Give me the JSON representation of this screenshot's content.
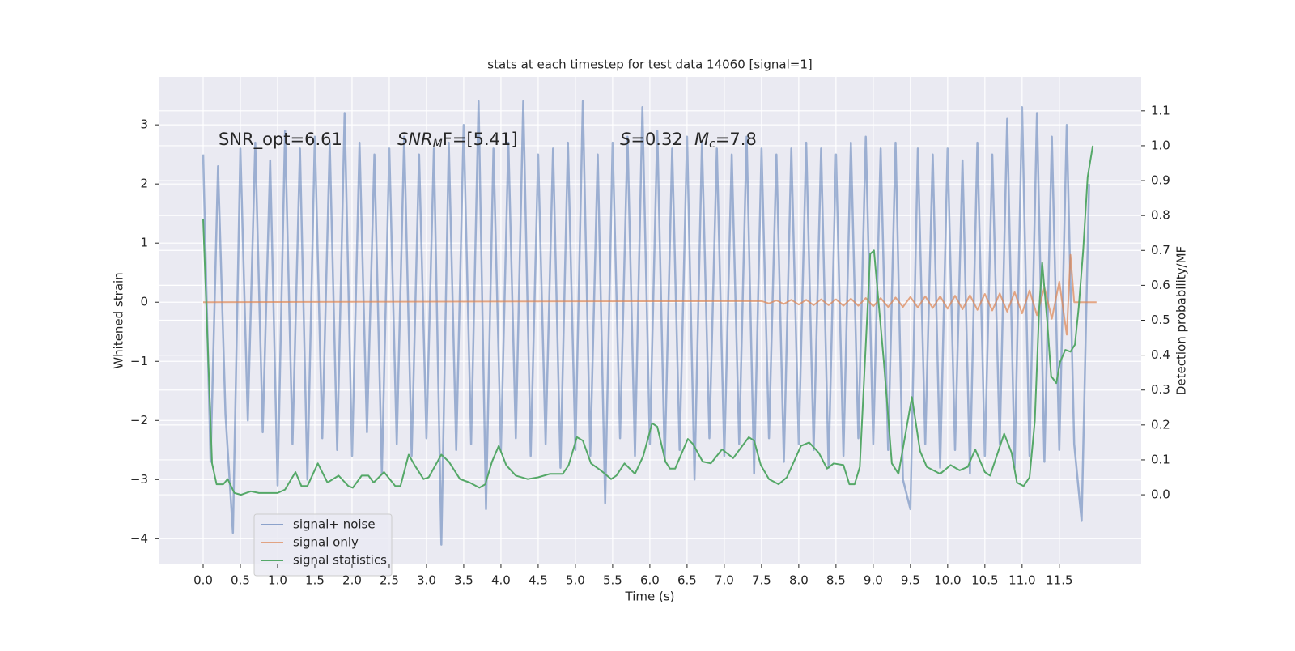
{
  "chart_data": {
    "type": "line",
    "title": "stats at each timestep for test data 14060 [signal=1]",
    "x_label": "Time (s)",
    "y_label": "Whitened strain",
    "y2_label": "Detection probability/MF",
    "annotations": [
      [
        "SNR_opt=6.61"
      ],
      [
        "SNR",
        "M",
        "F=[5.41]"
      ],
      [
        "S",
        "=0.32"
      ],
      [
        "M",
        "c",
        "=7.8"
      ]
    ],
    "xlim": [
      -0.587,
      12.6
    ],
    "ylim": [
      -4.42,
      3.81
    ],
    "y2lim": [
      -0.197,
      1.197
    ],
    "xticks": [
      {
        "value": 0,
        "label": "0.0"
      },
      0.5,
      {
        "value": 1,
        "label": "1.0"
      },
      1.5,
      {
        "value": 2,
        "label": "2.0"
      },
      2.5,
      {
        "value": 3,
        "label": "3.0"
      },
      3.5,
      {
        "value": 4,
        "label": "4.0"
      },
      4.5,
      {
        "value": 5,
        "label": "5.0"
      },
      5.5,
      {
        "value": 6,
        "label": "6.0"
      },
      6.5,
      {
        "value": 7,
        "label": "7.0"
      },
      7.5,
      {
        "value": 8,
        "label": "8.0"
      },
      8.5,
      {
        "value": 9,
        "label": "9.0"
      },
      9.5,
      {
        "value": 10,
        "label": "10.0"
      },
      10.5,
      {
        "value": 11,
        "label": "11.0"
      },
      11.5
    ],
    "yticks": [
      {
        "value": -4,
        "label": "−4"
      },
      {
        "value": -3,
        "label": "−3"
      },
      {
        "value": -2,
        "label": "−2"
      },
      {
        "value": -1,
        "label": "−1"
      },
      0,
      1,
      2,
      3
    ],
    "y2ticks": [
      {
        "value": 0,
        "label": "0.0"
      },
      0.1,
      0.2,
      0.3,
      0.4,
      0.5,
      0.6,
      0.7,
      0.8,
      0.9,
      {
        "value": 1,
        "label": "1.0"
      },
      1.1
    ],
    "grid": true,
    "legend": "lower left",
    "series": [
      {
        "name": "signal+ noise",
        "color": "#4c72b0",
        "x": [
          0.0,
          0.1,
          0.2,
          0.3,
          0.4,
          0.5,
          0.6,
          0.7,
          0.8,
          0.9,
          1.0,
          1.1,
          1.2,
          1.3,
          1.4,
          1.5,
          1.6,
          1.7,
          1.8,
          1.9,
          2.0,
          2.1,
          2.2,
          2.3,
          2.4,
          2.5,
          2.6,
          2.7,
          2.8,
          2.9,
          3.0,
          3.1,
          3.2,
          3.3,
          3.4,
          3.5,
          3.6,
          3.7,
          3.8,
          3.9,
          4.0,
          4.1,
          4.2,
          4.3,
          4.4,
          4.5,
          4.6,
          4.7,
          4.8,
          4.9,
          5.0,
          5.1,
          5.2,
          5.3,
          5.4,
          5.5,
          5.6,
          5.7,
          5.8,
          5.9,
          6.0,
          6.1,
          6.2,
          6.3,
          6.4,
          6.5,
          6.6,
          6.7,
          6.8,
          6.9,
          7.0,
          7.1,
          7.2,
          7.3,
          7.4,
          7.5,
          7.6,
          7.7,
          7.8,
          7.9,
          8.0,
          8.1,
          8.2,
          8.3,
          8.4,
          8.5,
          8.6,
          8.7,
          8.8,
          8.9,
          9.0,
          9.1,
          9.2,
          9.3,
          9.4,
          9.5,
          9.6,
          9.7,
          9.8,
          9.9,
          10.0,
          10.1,
          10.2,
          10.3,
          10.4,
          10.5,
          10.6,
          10.7,
          10.8,
          10.9,
          11.0,
          11.1,
          11.2,
          11.3,
          11.4,
          11.5,
          11.6,
          11.7,
          11.8,
          11.9
        ],
        "values": [
          2.5,
          -2.7,
          2.3,
          -1.9,
          -3.9,
          2.6,
          -2.0,
          2.7,
          -2.2,
          2.4,
          -3.1,
          2.9,
          -2.4,
          2.6,
          -3.0,
          2.8,
          -2.3,
          2.7,
          -2.5,
          3.2,
          -2.6,
          2.7,
          -2.2,
          2.5,
          -2.9,
          2.6,
          -2.4,
          2.8,
          -2.6,
          2.5,
          -2.3,
          2.6,
          -4.1,
          2.7,
          -2.5,
          3.0,
          -2.4,
          3.4,
          -3.5,
          2.6,
          -2.5,
          2.7,
          -2.3,
          3.4,
          -2.6,
          2.5,
          -2.4,
          2.6,
          -2.8,
          2.7,
          -2.5,
          3.4,
          -2.6,
          2.5,
          -3.4,
          2.7,
          -2.3,
          2.8,
          -2.6,
          3.3,
          -2.4,
          2.9,
          -2.7,
          2.6,
          -2.5,
          2.8,
          -3.0,
          2.7,
          -2.3,
          2.6,
          -2.6,
          2.5,
          -2.4,
          2.8,
          -2.9,
          2.6,
          -2.3,
          2.5,
          -2.7,
          2.6,
          -2.4,
          2.7,
          -2.5,
          2.6,
          -2.8,
          2.5,
          -2.6,
          2.7,
          -2.3,
          2.8,
          -2.4,
          2.6,
          -2.5,
          2.7,
          -3.0,
          -3.5,
          2.6,
          -2.4,
          2.5,
          -2.8,
          2.6,
          -2.5,
          2.4,
          -2.9,
          2.7,
          -2.6,
          2.5,
          -2.4,
          3.1,
          -2.8,
          3.3,
          -2.6,
          3.2,
          -2.7,
          2.8,
          -2.5,
          3.0,
          -2.4,
          -3.7,
          2.0
        ]
      },
      {
        "name": "signal only",
        "color": "#dd8452",
        "x": [
          0.0,
          7.5,
          7.6,
          7.7,
          7.8,
          7.9,
          8.0,
          8.1,
          8.2,
          8.3,
          8.4,
          8.5,
          8.6,
          8.7,
          8.8,
          8.9,
          9.0,
          9.1,
          9.2,
          9.3,
          9.4,
          9.5,
          9.6,
          9.7,
          9.8,
          9.9,
          10.0,
          10.1,
          10.2,
          10.3,
          10.4,
          10.5,
          10.6,
          10.7,
          10.8,
          10.9,
          11.0,
          11.1,
          11.2,
          11.3,
          11.4,
          11.5,
          11.6,
          11.65,
          11.7,
          12.0
        ],
        "values": [
          0,
          0.02,
          -0.02,
          0.03,
          -0.03,
          0.04,
          -0.04,
          0.04,
          -0.05,
          0.05,
          -0.05,
          0.05,
          -0.06,
          0.06,
          -0.06,
          0.07,
          -0.07,
          0.07,
          -0.08,
          0.08,
          -0.08,
          0.09,
          -0.09,
          0.1,
          -0.1,
          0.1,
          -0.11,
          0.11,
          -0.12,
          0.12,
          -0.13,
          0.14,
          -0.14,
          0.15,
          -0.16,
          0.17,
          -0.19,
          0.2,
          -0.22,
          0.25,
          -0.28,
          0.35,
          -0.55,
          0.8,
          0,
          0
        ]
      },
      {
        "name": "signal statistics",
        "color": "#55a868",
        "axis": "y2",
        "x": [
          0,
          0.12,
          0.18,
          0.27,
          0.33,
          0.42,
          0.51,
          0.64,
          0.75,
          0.86,
          1.0,
          1.1,
          1.24,
          1.32,
          1.4,
          1.54,
          1.67,
          1.82,
          1.95,
          2.01,
          2.13,
          2.22,
          2.29,
          2.43,
          2.58,
          2.65,
          2.76,
          2.84,
          2.96,
          3.03,
          3.2,
          3.3,
          3.45,
          3.58,
          3.71,
          3.79,
          3.88,
          3.97,
          4.07,
          4.2,
          4.36,
          4.5,
          4.66,
          4.83,
          4.91,
          5.02,
          5.1,
          5.21,
          5.34,
          5.48,
          5.55,
          5.66,
          5.8,
          5.91,
          6.03,
          6.1,
          6.21,
          6.27,
          6.34,
          6.51,
          6.58,
          6.71,
          6.82,
          6.97,
          7.12,
          7.33,
          7.4,
          7.49,
          7.6,
          7.73,
          7.84,
          8.03,
          8.14,
          8.27,
          8.38,
          8.47,
          8.6,
          8.68,
          8.75,
          8.82,
          8.96,
          9.01,
          9.14,
          9.25,
          9.34,
          9.52,
          9.63,
          9.72,
          9.9,
          10.04,
          10.16,
          10.27,
          10.37,
          10.5,
          10.57,
          10.76,
          10.86,
          10.93,
          11.02,
          11.1,
          11.17,
          11.23,
          11.27,
          11.34,
          11.39,
          11.46,
          11.51,
          11.58,
          11.65,
          11.71,
          11.76,
          11.82,
          11.88,
          11.95
        ],
        "values": [
          0.79,
          0.09,
          0.03,
          0.03,
          0.045,
          0.005,
          0.0,
          0.01,
          0.005,
          0.005,
          0.005,
          0.015,
          0.065,
          0.025,
          0.025,
          0.09,
          0.035,
          0.055,
          0.025,
          0.02,
          0.055,
          0.055,
          0.035,
          0.065,
          0.025,
          0.025,
          0.115,
          0.085,
          0.045,
          0.05,
          0.115,
          0.095,
          0.045,
          0.035,
          0.02,
          0.03,
          0.095,
          0.14,
          0.085,
          0.055,
          0.045,
          0.05,
          0.06,
          0.06,
          0.085,
          0.165,
          0.155,
          0.09,
          0.07,
          0.045,
          0.055,
          0.09,
          0.06,
          0.11,
          0.205,
          0.195,
          0.095,
          0.075,
          0.075,
          0.16,
          0.145,
          0.095,
          0.09,
          0.13,
          0.105,
          0.165,
          0.155,
          0.085,
          0.045,
          0.03,
          0.05,
          0.14,
          0.15,
          0.12,
          0.075,
          0.09,
          0.085,
          0.03,
          0.03,
          0.08,
          0.69,
          0.7,
          0.39,
          0.09,
          0.06,
          0.28,
          0.125,
          0.08,
          0.06,
          0.085,
          0.07,
          0.08,
          0.13,
          0.065,
          0.055,
          0.175,
          0.12,
          0.035,
          0.025,
          0.05,
          0.21,
          0.535,
          0.665,
          0.49,
          0.34,
          0.32,
          0.38,
          0.415,
          0.41,
          0.43,
          0.535,
          0.7,
          0.91,
          1.0
        ]
      }
    ]
  }
}
